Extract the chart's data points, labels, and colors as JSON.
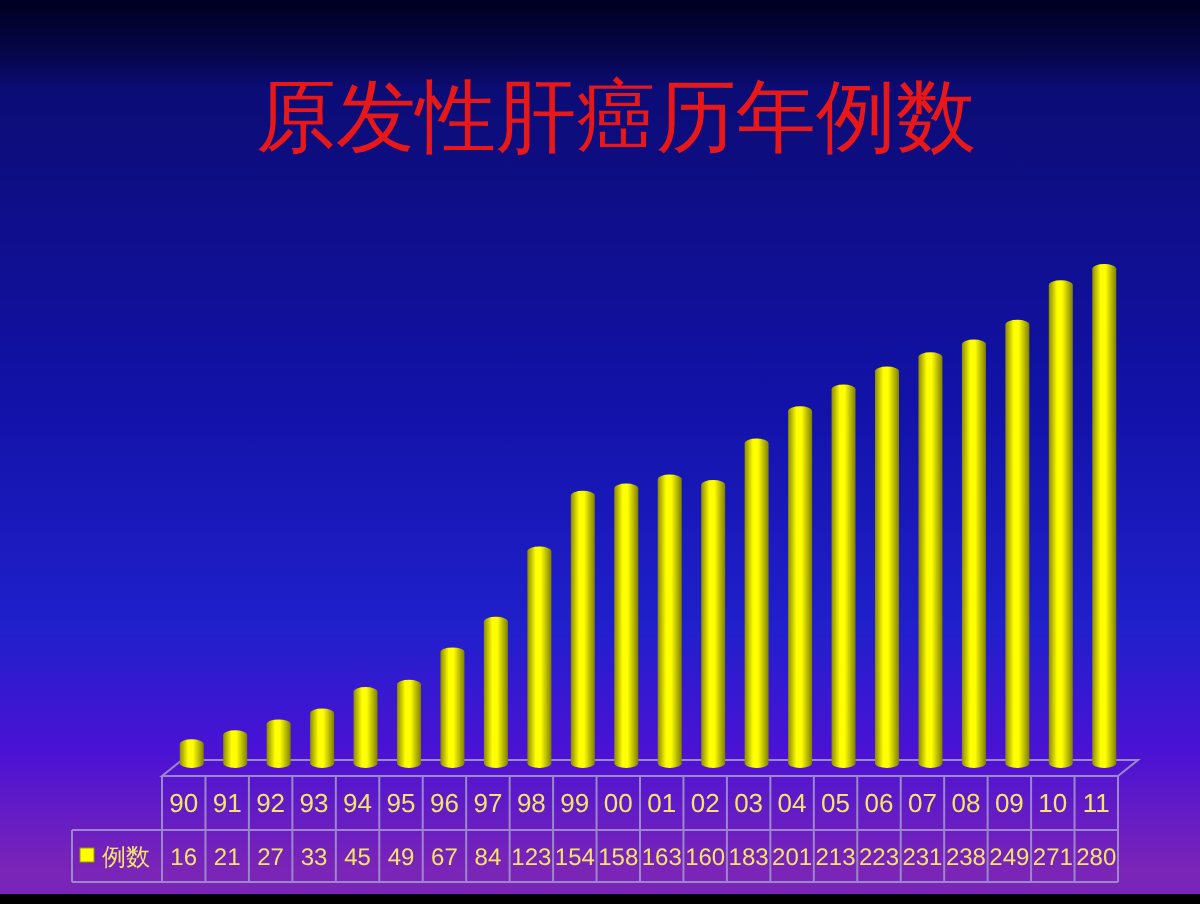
{
  "chart_data": {
    "type": "bar",
    "title": "原发性肝癌历年例数",
    "categories": [
      "90",
      "91",
      "92",
      "93",
      "94",
      "95",
      "96",
      "97",
      "98",
      "99",
      "00",
      "01",
      "02",
      "03",
      "04",
      "05",
      "06",
      "07",
      "08",
      "09",
      "10",
      "11"
    ],
    "series": [
      {
        "name": "例数",
        "color": "#ffff00",
        "values": [
          16,
          21,
          27,
          33,
          45,
          49,
          67,
          84,
          123,
          154,
          158,
          163,
          160,
          183,
          201,
          213,
          223,
          231,
          238,
          249,
          271,
          280
        ]
      }
    ],
    "data_labels": true,
    "legend": "bottom left"
  }
}
